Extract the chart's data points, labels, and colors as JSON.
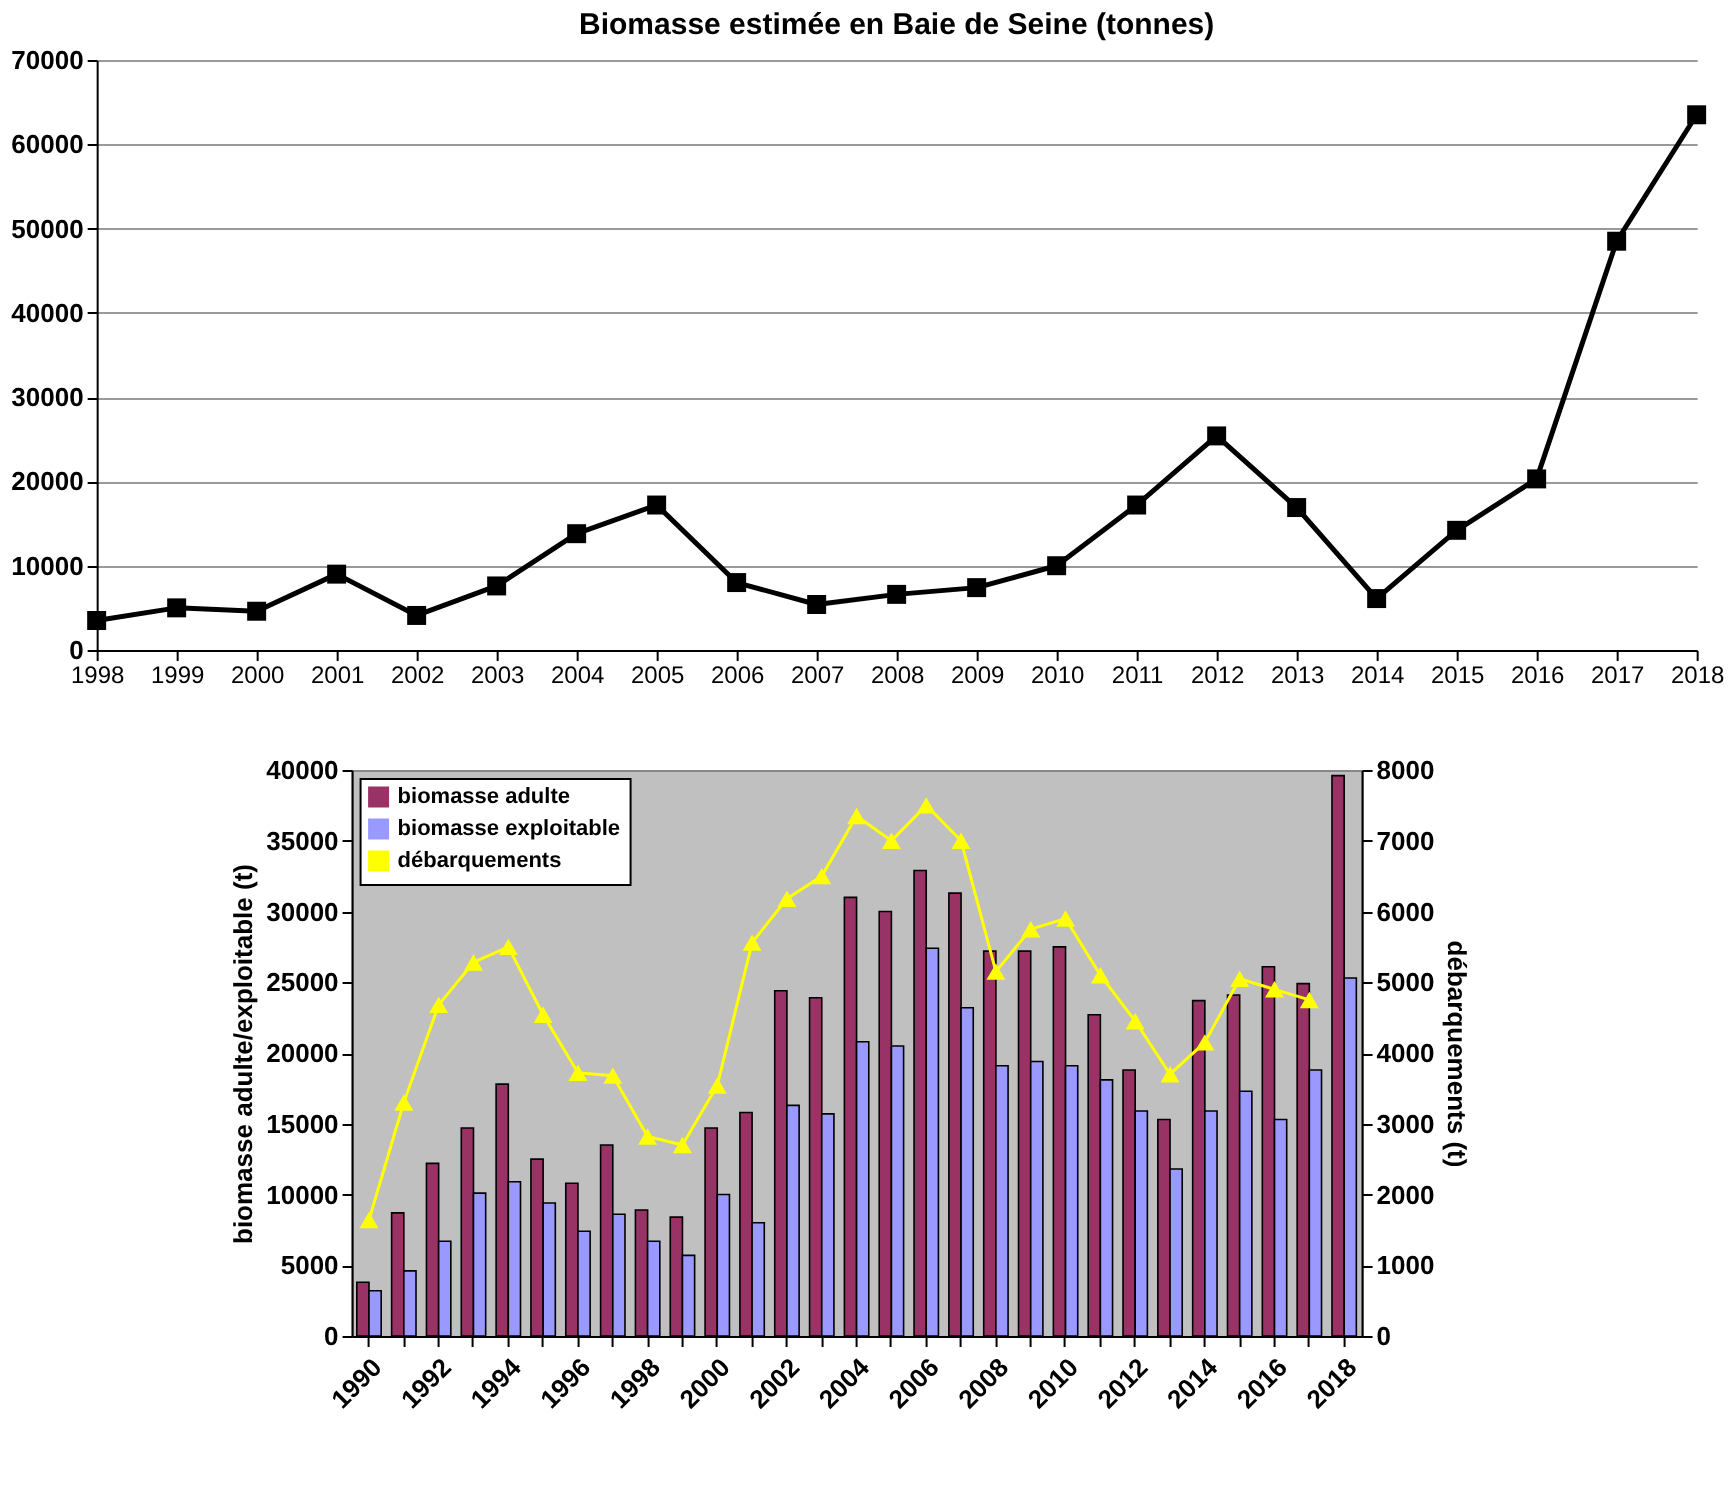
{
  "chart_data": [
    {
      "type": "line",
      "title": "Biomasse estimée en Baie de Seine (tonnes)",
      "categories": [
        "1998",
        "1999",
        "2000",
        "2001",
        "2002",
        "2003",
        "2004",
        "2005",
        "2006",
        "2007",
        "2008",
        "2009",
        "2010",
        "2011",
        "2012",
        "2013",
        "2014",
        "2015",
        "2016",
        "2017",
        "2018"
      ],
      "series": [
        {
          "color": "#000000",
          "values": [
            3500,
            5000,
            4600,
            9000,
            4100,
            7600,
            13800,
            17200,
            8000,
            5400,
            6600,
            7400,
            10000,
            17200,
            25400,
            16900,
            6100,
            14200,
            20300,
            48500,
            63500
          ]
        }
      ],
      "ylim": [
        0,
        70000
      ],
      "yticks": [
        0,
        10000,
        20000,
        30000,
        40000,
        50000,
        60000,
        70000
      ],
      "grid": "y",
      "marker": "square"
    },
    {
      "type": "bar",
      "categories": [
        "1990",
        null,
        "1992",
        null,
        "1994",
        null,
        "1996",
        null,
        "1998",
        null,
        "2000",
        null,
        "2002",
        null,
        "2004",
        null,
        "2006",
        null,
        "2008",
        null,
        "2010",
        null,
        "2012",
        null,
        "2014",
        null,
        "2016",
        null,
        "2018"
      ],
      "series": [
        {
          "name": "biomasse adulte",
          "color": "#993366",
          "values": [
            3800,
            8700,
            12200,
            14700,
            17800,
            12500,
            10800,
            13500,
            8900,
            8400,
            14700,
            15800,
            24400,
            23900,
            31000,
            30000,
            32900,
            31300,
            27200,
            27200,
            27500,
            22700,
            18800,
            15300,
            23700,
            24100,
            26100,
            24900,
            39600
          ]
        },
        {
          "name": "biomasse exploitable",
          "color": "#9999ff",
          "values": [
            3200,
            4600,
            6700,
            10100,
            10900,
            9400,
            7400,
            8600,
            6700,
            5700,
            10000,
            8000,
            16300,
            15700,
            20800,
            20500,
            27400,
            23200,
            19100,
            19400,
            19100,
            18100,
            15900,
            11800,
            15900,
            17300,
            15300,
            18800,
            25300
          ]
        },
        {
          "name": "débarquements",
          "type": "line",
          "axis": "y2",
          "color": "#ffff00",
          "values": [
            1640,
            3300,
            4680,
            5280,
            5500,
            4540,
            3720,
            3680,
            2820,
            2700,
            3540,
            5560,
            6180,
            6500,
            7350,
            7000,
            7500,
            7000,
            5150,
            5750,
            5900,
            5100,
            4450,
            3700,
            4150,
            5050,
            4900,
            4750,
            null
          ]
        }
      ],
      "ylabel": "biomasse adulte/exploitable (t)",
      "y2label": "débarquements (t)",
      "ylim": [
        0,
        40000
      ],
      "yticks": [
        0,
        5000,
        10000,
        15000,
        20000,
        25000,
        30000,
        35000,
        40000
      ],
      "y2lim": [
        0,
        8000
      ],
      "y2ticks": [
        0,
        1000,
        2000,
        3000,
        4000,
        5000,
        6000,
        7000,
        8000
      ],
      "marker": "triangle",
      "legend": "top left",
      "grid": false
    }
  ]
}
